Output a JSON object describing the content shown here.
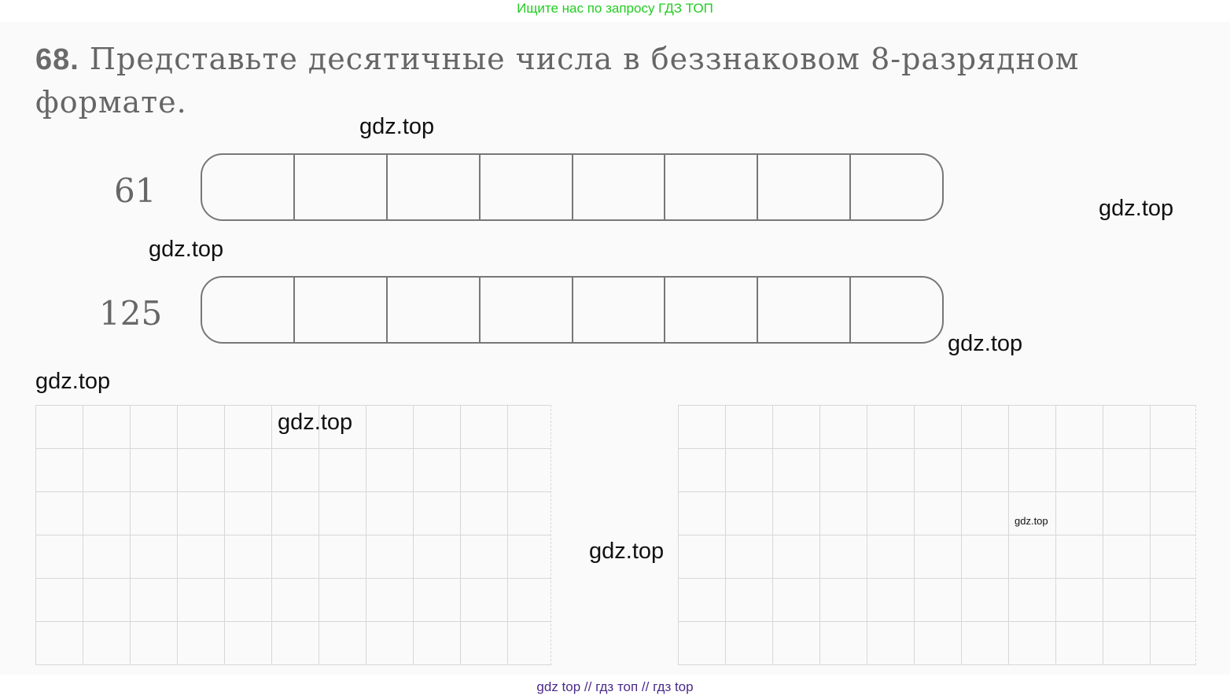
{
  "banner": "Ищите нас по запросу ГДЗ ТОП",
  "task": {
    "number": "68.",
    "text": "Представьте десятичные числа в беззнаковом 8-разрядном форматe."
  },
  "rows": [
    {
      "label": "61"
    },
    {
      "label": "125"
    }
  ],
  "watermarks": [
    "gdz.top",
    "gdz.top",
    "gdz.top",
    "gdz.top",
    "gdz.top",
    "gdz.top",
    "gdz.top",
    "gdz.top"
  ],
  "footer": "gdz top  //  гдз топ  //  гдз top"
}
